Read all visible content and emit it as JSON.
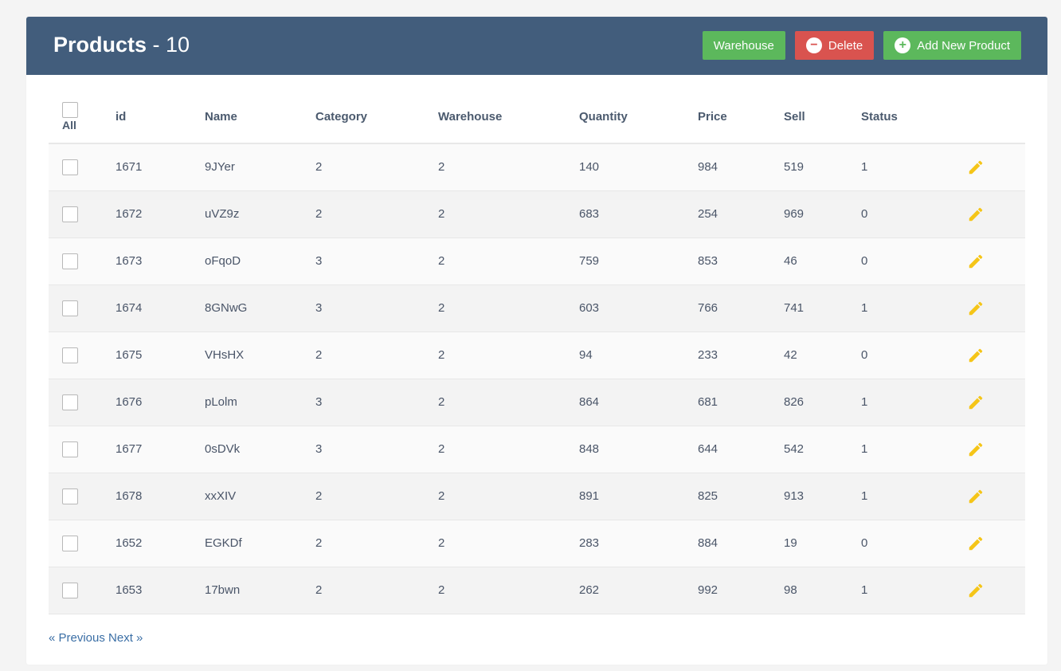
{
  "header": {
    "title": "Products",
    "count": "- 10",
    "buttons": {
      "warehouse": "Warehouse",
      "delete": "Delete",
      "add": "Add New Product"
    }
  },
  "table": {
    "all_label": "All",
    "columns": [
      "id",
      "Name",
      "Category",
      "Warehouse",
      "Quantity",
      "Price",
      "Sell",
      "Status"
    ],
    "rows": [
      {
        "id": "1671",
        "name": "9JYer",
        "category": "2",
        "warehouse": "2",
        "quantity": "140",
        "price": "984",
        "sell": "519",
        "status": "1"
      },
      {
        "id": "1672",
        "name": "uVZ9z",
        "category": "2",
        "warehouse": "2",
        "quantity": "683",
        "price": "254",
        "sell": "969",
        "status": "0"
      },
      {
        "id": "1673",
        "name": "oFqoD",
        "category": "3",
        "warehouse": "2",
        "quantity": "759",
        "price": "853",
        "sell": "46",
        "status": "0"
      },
      {
        "id": "1674",
        "name": "8GNwG",
        "category": "3",
        "warehouse": "2",
        "quantity": "603",
        "price": "766",
        "sell": "741",
        "status": "1"
      },
      {
        "id": "1675",
        "name": "VHsHX",
        "category": "2",
        "warehouse": "2",
        "quantity": "94",
        "price": "233",
        "sell": "42",
        "status": "0"
      },
      {
        "id": "1676",
        "name": "pLolm",
        "category": "3",
        "warehouse": "2",
        "quantity": "864",
        "price": "681",
        "sell": "826",
        "status": "1"
      },
      {
        "id": "1677",
        "name": "0sDVk",
        "category": "3",
        "warehouse": "2",
        "quantity": "848",
        "price": "644",
        "sell": "542",
        "status": "1"
      },
      {
        "id": "1678",
        "name": "xxXIV",
        "category": "2",
        "warehouse": "2",
        "quantity": "891",
        "price": "825",
        "sell": "913",
        "status": "1"
      },
      {
        "id": "1652",
        "name": "EGKDf",
        "category": "2",
        "warehouse": "2",
        "quantity": "283",
        "price": "884",
        "sell": "19",
        "status": "0"
      },
      {
        "id": "1653",
        "name": "17bwn",
        "category": "2",
        "warehouse": "2",
        "quantity": "262",
        "price": "992",
        "sell": "98",
        "status": "1"
      }
    ]
  },
  "pagination": {
    "previous": "« Previous",
    "next": "Next »"
  },
  "icons": {
    "delete": "minus-circle-icon",
    "add": "plus-circle-icon",
    "edit": "pencil-icon"
  },
  "colors": {
    "header_bg": "#425d7c",
    "green": "#5cb85c",
    "red": "#d9534f",
    "edit_icon": "#f5c518",
    "link": "#3a6ea5"
  }
}
